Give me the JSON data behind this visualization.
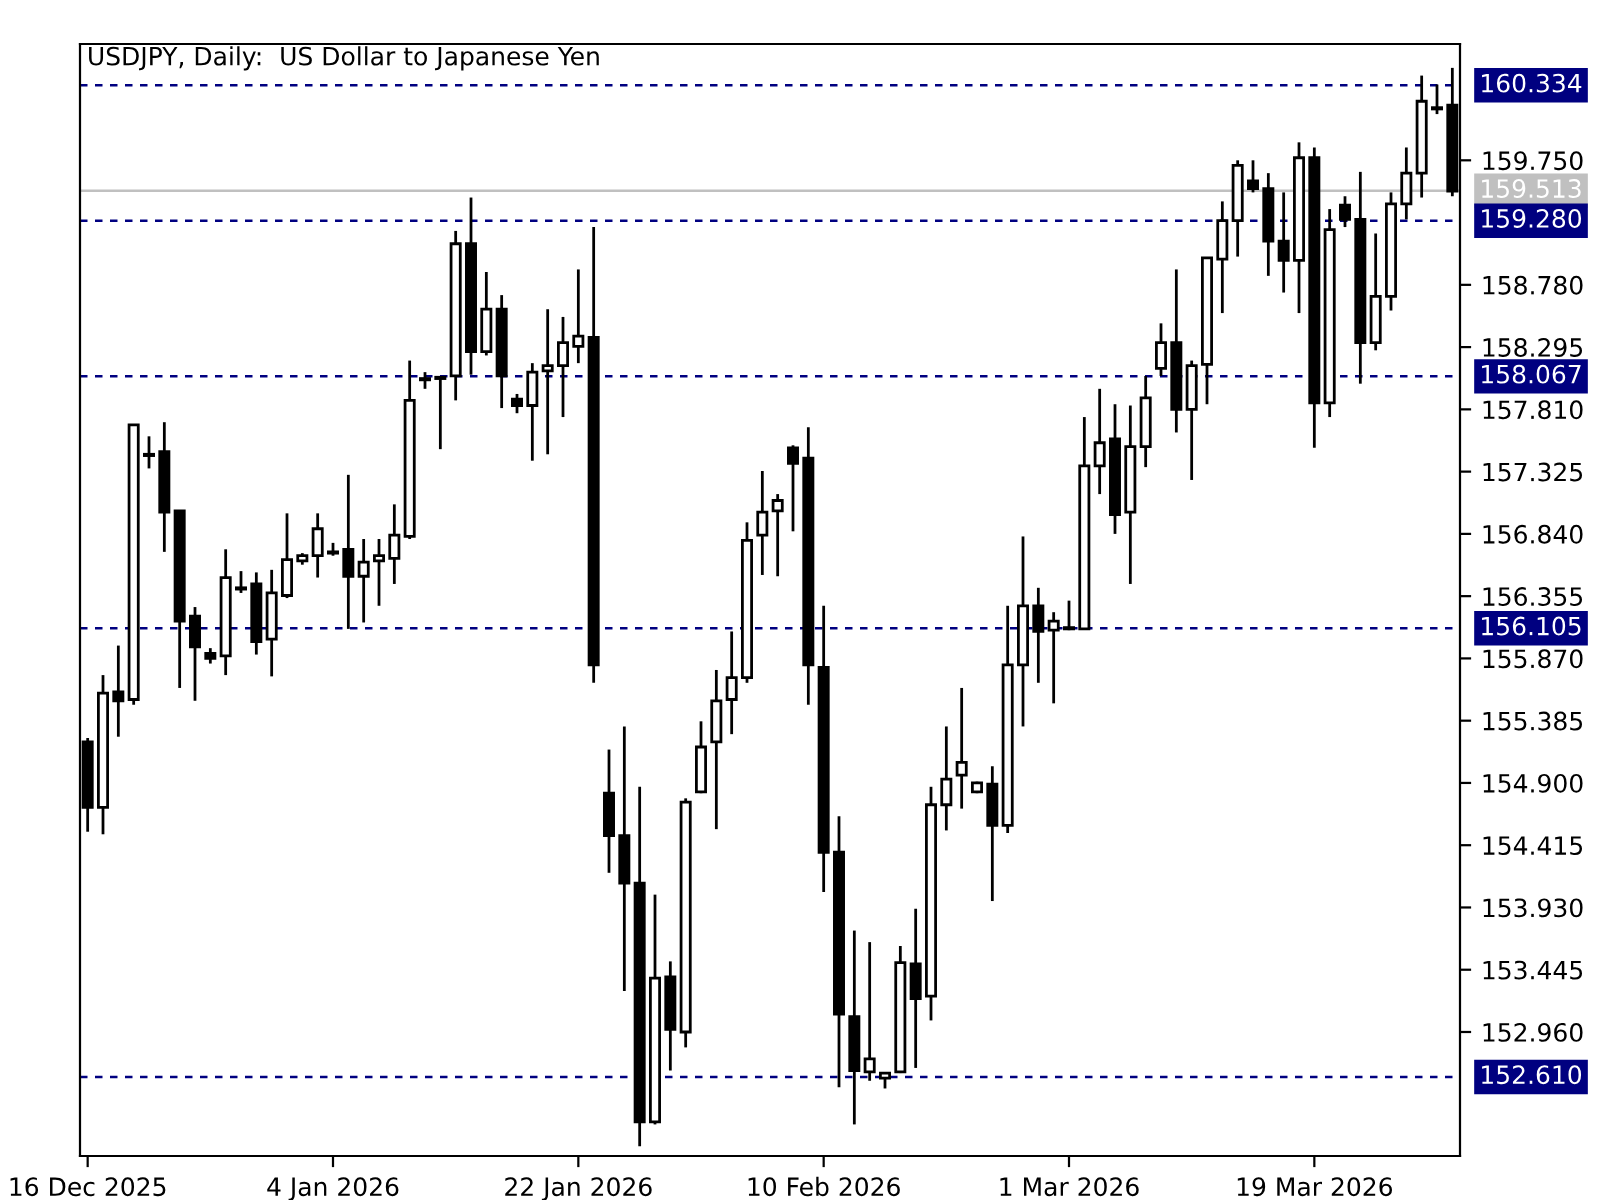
{
  "chart_data": {
    "type": "candlestick",
    "title": "USDJPY, Daily:  US Dollar to Japanese Yen",
    "categories": [
      "16 Dec 2025",
      null,
      null,
      null,
      null,
      null,
      null,
      null,
      null,
      null,
      null,
      null,
      null,
      null,
      null,
      null,
      "4 Jan 2026",
      null,
      null,
      null,
      null,
      null,
      null,
      null,
      null,
      null,
      null,
      null,
      null,
      null,
      null,
      null,
      "22 Jan 2026",
      null,
      null,
      null,
      null,
      null,
      null,
      null,
      null,
      null,
      null,
      null,
      null,
      null,
      null,
      null,
      "10 Feb 2026",
      null,
      null,
      null,
      null,
      null,
      null,
      null,
      null,
      null,
      null,
      null,
      null,
      null,
      null,
      null,
      "1 Mar 2026",
      null,
      null,
      null,
      null,
      null,
      null,
      null,
      null,
      null,
      null,
      null,
      null,
      null,
      null,
      null,
      "19 Mar 2026",
      null,
      null,
      null,
      null,
      null,
      null,
      null,
      null,
      null
    ],
    "ohlc": [
      [
        155.22,
        155.25,
        154.52,
        154.71
      ],
      [
        154.71,
        155.74,
        154.5,
        155.6
      ],
      [
        155.61,
        155.97,
        155.26,
        155.54
      ],
      [
        155.55,
        157.69,
        155.51,
        157.69
      ],
      [
        157.45,
        157.6,
        157.35,
        157.46
      ],
      [
        157.48,
        157.71,
        156.7,
        157.01
      ],
      [
        157.02,
        157.02,
        155.64,
        156.16
      ],
      [
        156.2,
        156.27,
        155.54,
        155.96
      ],
      [
        155.91,
        155.95,
        155.83,
        155.87
      ],
      [
        155.89,
        156.72,
        155.74,
        156.5
      ],
      [
        156.41,
        156.55,
        156.38,
        156.42
      ],
      [
        156.45,
        156.54,
        155.9,
        156.0
      ],
      [
        156.02,
        156.56,
        155.73,
        156.38
      ],
      [
        156.36,
        157.0,
        156.34,
        156.64
      ],
      [
        156.63,
        156.69,
        156.6,
        156.67
      ],
      [
        156.67,
        157.0,
        156.5,
        156.88
      ],
      [
        156.7,
        156.77,
        156.67,
        156.69
      ],
      [
        156.72,
        157.3,
        156.1,
        156.51
      ],
      [
        156.51,
        156.8,
        156.15,
        156.62
      ],
      [
        156.63,
        156.8,
        156.28,
        156.67
      ],
      [
        156.65,
        157.07,
        156.45,
        156.83
      ],
      [
        156.82,
        158.19,
        156.8,
        157.88
      ],
      [
        158.04,
        158.1,
        157.97,
        158.05
      ],
      [
        158.05,
        158.07,
        157.5,
        158.06
      ],
      [
        158.07,
        159.2,
        157.88,
        159.1
      ],
      [
        159.1,
        159.46,
        158.08,
        158.26
      ],
      [
        158.26,
        158.88,
        158.23,
        158.59
      ],
      [
        158.59,
        158.7,
        157.82,
        158.07
      ],
      [
        157.89,
        157.93,
        157.78,
        157.84
      ],
      [
        157.84,
        158.17,
        157.41,
        158.1
      ],
      [
        158.11,
        158.59,
        157.46,
        158.15
      ],
      [
        158.15,
        158.53,
        157.75,
        158.33
      ],
      [
        158.3,
        158.9,
        158.17,
        158.38
      ],
      [
        158.37,
        159.23,
        155.68,
        155.82
      ],
      [
        154.82,
        155.16,
        154.2,
        154.49
      ],
      [
        154.49,
        155.34,
        153.28,
        154.12
      ],
      [
        154.12,
        154.87,
        152.07,
        152.26
      ],
      [
        152.26,
        154.03,
        152.24,
        153.38
      ],
      [
        153.39,
        153.51,
        152.66,
        152.98
      ],
      [
        152.96,
        154.78,
        152.84,
        154.75
      ],
      [
        154.83,
        155.38,
        154.82,
        155.18
      ],
      [
        155.22,
        155.78,
        154.54,
        155.54
      ],
      [
        155.55,
        156.08,
        155.28,
        155.72
      ],
      [
        155.72,
        156.93,
        155.68,
        156.79
      ],
      [
        156.83,
        157.33,
        156.52,
        157.01
      ],
      [
        157.02,
        157.15,
        156.51,
        157.1
      ],
      [
        157.51,
        157.53,
        156.86,
        157.39
      ],
      [
        157.43,
        157.67,
        155.51,
        155.82
      ],
      [
        155.8,
        156.28,
        154.05,
        154.36
      ],
      [
        154.36,
        154.64,
        152.53,
        153.1
      ],
      [
        153.08,
        153.75,
        152.24,
        152.66
      ],
      [
        152.65,
        153.66,
        152.58,
        152.75
      ],
      [
        152.6,
        152.64,
        152.52,
        152.64
      ],
      [
        152.65,
        153.63,
        152.64,
        153.5
      ],
      [
        153.49,
        153.92,
        152.68,
        153.22
      ],
      [
        153.24,
        154.87,
        153.05,
        154.73
      ],
      [
        154.73,
        155.34,
        154.53,
        154.93
      ],
      [
        154.96,
        155.64,
        154.7,
        155.06
      ],
      [
        154.83,
        154.91,
        154.82,
        154.9
      ],
      [
        154.89,
        155.03,
        153.98,
        154.57
      ],
      [
        154.57,
        156.28,
        154.51,
        155.82
      ],
      [
        155.82,
        156.82,
        155.34,
        156.28
      ],
      [
        156.28,
        156.42,
        155.68,
        156.08
      ],
      [
        156.09,
        156.23,
        155.52,
        156.16
      ],
      [
        156.1,
        156.32,
        156.09,
        156.11
      ],
      [
        156.1,
        157.75,
        156.1,
        157.37
      ],
      [
        157.37,
        157.97,
        157.15,
        157.55
      ],
      [
        157.58,
        157.85,
        156.84,
        156.99
      ],
      [
        157.01,
        157.84,
        156.45,
        157.52
      ],
      [
        157.52,
        158.07,
        157.36,
        157.9
      ],
      [
        158.13,
        158.48,
        158.07,
        158.33
      ],
      [
        158.33,
        158.9,
        157.63,
        157.81
      ],
      [
        157.81,
        158.19,
        157.26,
        158.15
      ],
      [
        158.16,
        158.99,
        157.85,
        158.99
      ],
      [
        158.98,
        159.43,
        158.56,
        159.28
      ],
      [
        159.28,
        159.75,
        159.0,
        159.71
      ],
      [
        159.59,
        159.75,
        159.5,
        159.53
      ],
      [
        159.53,
        159.65,
        158.85,
        159.12
      ],
      [
        159.12,
        159.5,
        158.72,
        158.97
      ],
      [
        158.97,
        159.89,
        158.56,
        159.77
      ],
      [
        159.77,
        159.85,
        157.51,
        157.86
      ],
      [
        157.86,
        159.37,
        157.75,
        159.21
      ],
      [
        159.4,
        159.47,
        159.23,
        159.29
      ],
      [
        159.29,
        159.66,
        158.01,
        158.33
      ],
      [
        158.33,
        159.18,
        158.27,
        158.69
      ],
      [
        158.69,
        159.5,
        158.58,
        159.41
      ],
      [
        159.41,
        159.85,
        159.29,
        159.65
      ],
      [
        159.65,
        160.41,
        159.46,
        160.21
      ],
      [
        160.15,
        160.34,
        160.11,
        160.16
      ],
      [
        160.18,
        160.47,
        159.47,
        159.51
      ]
    ],
    "ylim": [
      151.994,
      160.656
    ],
    "yticks": [
      {
        "value": 152.96,
        "label": "152.960"
      },
      153.445,
      {
        "value": 153.93,
        "label": "153.930"
      },
      154.415,
      {
        "value": 154.9,
        "label": "154.900"
      },
      155.385,
      {
        "value": 155.87,
        "label": "155.870"
      },
      156.355,
      {
        "value": 156.84,
        "label": "156.840"
      },
      157.325,
      {
        "value": 157.81,
        "label": "157.810"
      },
      158.295,
      {
        "value": 158.78,
        "label": "158.780"
      },
      {
        "value": 159.75,
        "label": "159.750"
      }
    ],
    "ref_lines": [
      {
        "axis": "y",
        "value": 160.334,
        "label": "160.334",
        "color": "#000080",
        "line_style": "dashed"
      },
      {
        "axis": "y",
        "value": 159.513,
        "label": "159.513",
        "color": "#c0c0c0",
        "line_style": "solid"
      },
      {
        "axis": "y",
        "value": 159.28,
        "label": "159.280",
        "color": "#000080",
        "line_style": "dashed"
      },
      {
        "axis": "y",
        "value": 158.067,
        "label": "158.067",
        "color": "#000080",
        "line_style": "dashed"
      },
      {
        "axis": "y",
        "value": 156.105,
        "label": "156.105",
        "color": "#000080",
        "line_style": "dashed"
      },
      {
        "axis": "y",
        "value": 152.61,
        "label": "152.610",
        "color": "#000080",
        "line_style": "dashed"
      }
    ],
    "grid": false
  }
}
